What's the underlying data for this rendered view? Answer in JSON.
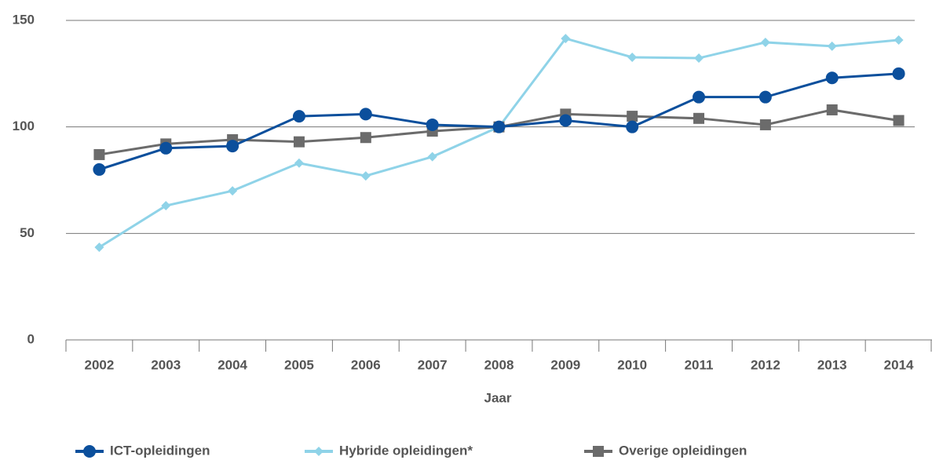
{
  "chart_data": {
    "type": "line",
    "xlabel": "Jaar",
    "categories": [
      "2002",
      "2003",
      "2004",
      "2005",
      "2006",
      "2007",
      "2008",
      "2009",
      "2010",
      "2011",
      "2012",
      "2013",
      "2014"
    ],
    "series": [
      {
        "name": "ICT-opleidingen",
        "color": "#0b4f9c",
        "marker": "circle",
        "values": [
          80,
          90,
          91,
          105,
          106,
          101,
          100,
          103,
          100,
          114,
          114,
          123,
          125
        ]
      },
      {
        "name": "Hybride opleidingen*",
        "color": "#8fd3e8",
        "marker": "diamond",
        "values": [
          43.5,
          63,
          70,
          83,
          77,
          86,
          100,
          141.5,
          132.7,
          132.3,
          139.7,
          137.9,
          140.8
        ]
      },
      {
        "name": "Overige opleidingen",
        "color": "#6b6b6b",
        "marker": "square",
        "values": [
          87,
          92,
          94,
          93,
          95,
          98,
          100,
          106,
          105,
          104,
          101,
          108,
          103
        ]
      }
    ],
    "ylim": [
      0,
      150
    ],
    "yticks": [
      0,
      50,
      100,
      150
    ],
    "grid": true,
    "legend": "bottom"
  }
}
